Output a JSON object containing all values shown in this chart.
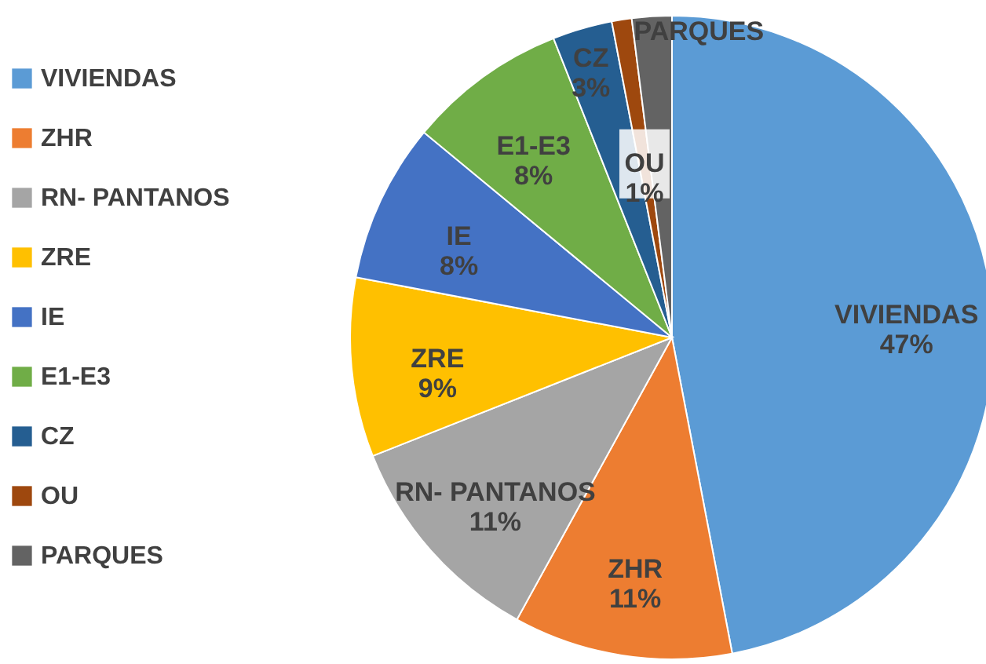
{
  "chart_data": {
    "type": "pie",
    "categories": [
      "VIVIENDAS",
      "ZHR",
      "RN- PANTANOS",
      "ZRE",
      "IE",
      "E1-E3",
      "CZ",
      "OU",
      "PARQUES"
    ],
    "values": [
      47,
      11,
      11,
      9,
      8,
      8,
      3,
      1,
      2
    ],
    "value_labels": [
      "47%",
      "11%",
      "11%",
      "9%",
      "8%",
      "8%",
      "3%",
      "1%",
      null
    ],
    "colors": [
      "#5b9bd5",
      "#ed7d31",
      "#a5a5a5",
      "#ffc000",
      "#4472c4",
      "#70ad47",
      "#255e91",
      "#9e480e",
      "#636363"
    ],
    "legend": "left"
  }
}
